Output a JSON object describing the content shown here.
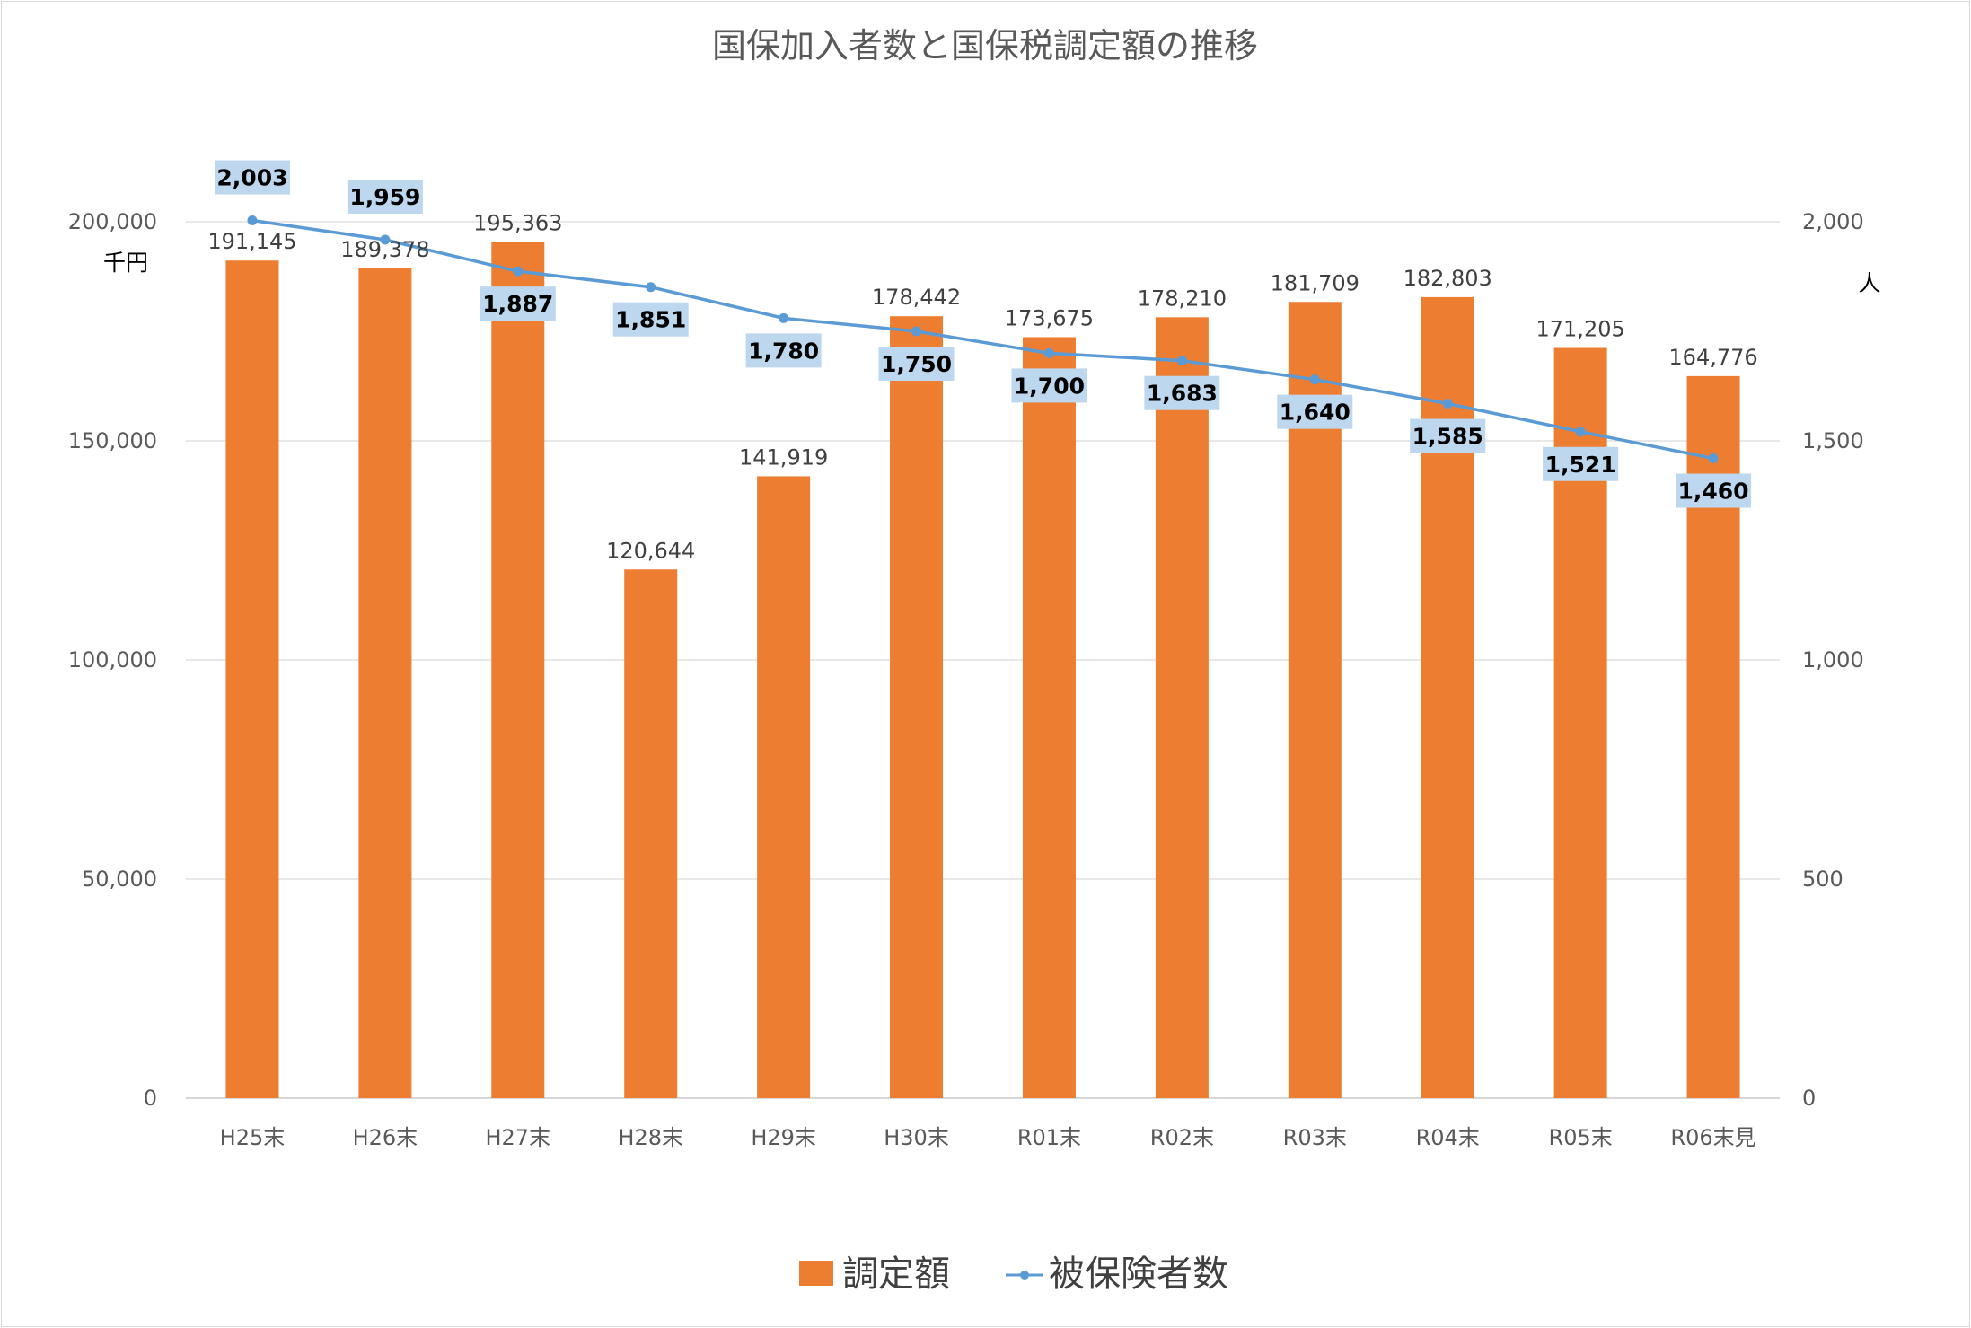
{
  "chart_data": {
    "type": "bar",
    "title": "国保加入者数と国保税調定額の推移",
    "categories": [
      "H25末",
      "H26末",
      "H27末",
      "H28末",
      "H29末",
      "H30末",
      "R01末",
      "R02末",
      "R03末",
      "R04末",
      "R05末",
      "R06末見"
    ],
    "series": [
      {
        "name": "調定額",
        "type": "bar",
        "axis": "left",
        "values": [
          191145,
          189378,
          195363,
          120644,
          141919,
          178442,
          173675,
          178210,
          181709,
          182803,
          171205,
          164776
        ],
        "labels": [
          "191,145",
          "189,378",
          "195,363",
          "120,644",
          "141,919",
          "178,442",
          "173,675",
          "178,210",
          "181,709",
          "182,803",
          "171,205",
          "164,776"
        ]
      },
      {
        "name": "被保険者数",
        "type": "line",
        "axis": "right",
        "values": [
          2003,
          1959,
          1887,
          1851,
          1780,
          1750,
          1700,
          1683,
          1640,
          1585,
          1521,
          1460
        ],
        "labels": [
          "2,003",
          "1,959",
          "1,887",
          "1,851",
          "1,780",
          "1,750",
          "1,700",
          "1,683",
          "1,640",
          "1,585",
          "1,521",
          "1,460"
        ]
      }
    ],
    "y_left": {
      "unit": "千円",
      "range": [
        0,
        200000
      ],
      "ticks": [
        0,
        50000,
        100000,
        150000,
        200000
      ],
      "tick_labels": [
        "0",
        "50,000",
        "100,000",
        "150,000",
        "200,000"
      ]
    },
    "y_right": {
      "unit": "人",
      "range": [
        0,
        2000
      ],
      "ticks": [
        0,
        500,
        1000,
        1500,
        2000
      ],
      "tick_labels": [
        "0",
        "500",
        "1,000",
        "1,500",
        "2,000"
      ]
    },
    "grid": true,
    "legend_position": "bottom",
    "colors": {
      "bar": "#ED7D31",
      "line": "#5B9BD5",
      "line_label_box": "#BDD7EE",
      "grid": "#D9D9D9"
    }
  }
}
